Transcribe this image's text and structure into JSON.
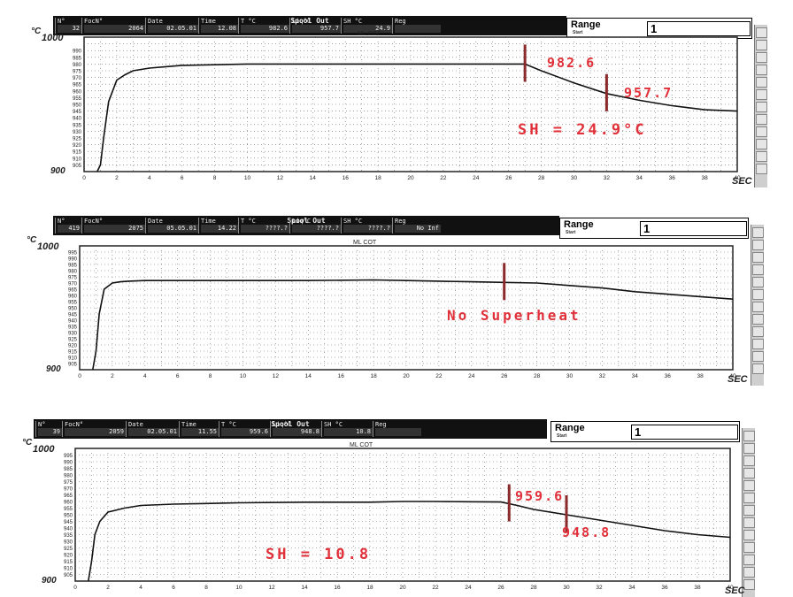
{
  "header_title": "Spool Out",
  "plot_label": "ML COT",
  "range_label": "Range",
  "range_sub": "Start",
  "colors": {
    "curve": "#111111",
    "annotation": "#e0303a",
    "marker": "#8a2a2a",
    "header": "#111111"
  },
  "panels": [
    {
      "header": {
        "cols": [
          {
            "label": "N°",
            "value": "32"
          },
          {
            "label": "FocN°",
            "value": "2064"
          },
          {
            "label": "Date",
            "value": "02.05.01"
          },
          {
            "label": "Time",
            "value": "12.08"
          },
          {
            "label": "T °C",
            "value": "982.6"
          },
          {
            "label": "Liq°C",
            "value": "957.7"
          },
          {
            "label": "SH °C",
            "value": "24.9"
          },
          {
            "label": "Reg",
            "value": ""
          }
        ],
        "range_value": "1"
      },
      "chart_data": {
        "type": "line",
        "x": [
          0.8,
          1.0,
          1.2,
          1.5,
          2,
          2.5,
          3,
          4,
          5,
          6,
          8,
          10,
          12,
          14,
          16,
          18,
          20,
          22,
          24,
          26,
          27,
          28,
          30,
          32,
          34,
          36,
          38,
          40
        ],
        "y": [
          900,
          905,
          925,
          952,
          968,
          972,
          975,
          977,
          978,
          979,
          979.5,
          980,
          980,
          980,
          980,
          980,
          980,
          980,
          980,
          980,
          980,
          975,
          966,
          958,
          953,
          949,
          946,
          945
        ],
        "xlim": [
          0,
          40
        ],
        "ylim": [
          900,
          1000
        ],
        "xticks": [
          "0",
          "2",
          "4",
          "6",
          "8",
          "10",
          "12",
          "14",
          "16",
          "18",
          "20",
          "22",
          "24",
          "26",
          "28",
          "30",
          "32",
          "34",
          "36",
          "38",
          "40"
        ],
        "yticks": [
          "905",
          "910",
          "915",
          "920",
          "925",
          "930",
          "935",
          "940",
          "945",
          "950",
          "955",
          "960",
          "965",
          "970",
          "975",
          "980",
          "985",
          "990"
        ],
        "yaxis_top": "1000",
        "yaxis_bottom": "900",
        "y_unit": "°C",
        "x_unit": "SEC",
        "markers": [
          {
            "x": 27,
            "label": "982.6"
          },
          {
            "x": 32,
            "label": "957.7"
          }
        ],
        "annotation": "SH = 24.9°C"
      }
    },
    {
      "header": {
        "cols": [
          {
            "label": "N°",
            "value": "419"
          },
          {
            "label": "FocN°",
            "value": "2075"
          },
          {
            "label": "Date",
            "value": "05.05.01"
          },
          {
            "label": "Time",
            "value": "14.22"
          },
          {
            "label": "T °C",
            "value": "????.?"
          },
          {
            "label": "Liq°C",
            "value": "????.?"
          },
          {
            "label": "SH °C",
            "value": "????.?"
          },
          {
            "label": "Reg",
            "value": "No Inf"
          }
        ],
        "range_value": "1"
      },
      "chart_data": {
        "type": "line",
        "x": [
          0.8,
          1.0,
          1.2,
          1.5,
          2,
          2.5,
          3,
          4,
          6,
          8,
          10,
          14,
          18,
          20,
          24,
          26,
          28,
          30,
          32,
          34,
          36,
          38,
          40
        ],
        "y": [
          900,
          915,
          945,
          965,
          970,
          971,
          971.5,
          972,
          972,
          972,
          972,
          972,
          972.5,
          972,
          971,
          970.5,
          970,
          968,
          966,
          963,
          961,
          959,
          957
        ],
        "xlim": [
          0,
          40
        ],
        "ylim": [
          900,
          1000
        ],
        "xticks": [
          "0",
          "2",
          "4",
          "6",
          "8",
          "10",
          "12",
          "14",
          "16",
          "18",
          "20",
          "22",
          "24",
          "26",
          "28",
          "30",
          "32",
          "34",
          "36",
          "38",
          "40"
        ],
        "yticks": [
          "905",
          "910",
          "915",
          "920",
          "925",
          "930",
          "935",
          "940",
          "945",
          "950",
          "955",
          "960",
          "965",
          "970",
          "975",
          "980",
          "985",
          "990",
          "995"
        ],
        "yaxis_top": "1000",
        "yaxis_bottom": "900",
        "y_unit": "°C",
        "x_unit": "SEC",
        "markers": [
          {
            "x": 26,
            "label": ""
          }
        ],
        "annotation": "No Superheat"
      }
    },
    {
      "header": {
        "cols": [
          {
            "label": "N°",
            "value": "39"
          },
          {
            "label": "FocN°",
            "value": "2059"
          },
          {
            "label": "Date",
            "value": "02.05.01"
          },
          {
            "label": "Time",
            "value": "11.55"
          },
          {
            "label": "T °C",
            "value": "959.6"
          },
          {
            "label": "Liq°C",
            "value": "948.8"
          },
          {
            "label": "SH °C",
            "value": "10.8"
          },
          {
            "label": "Reg",
            "value": ""
          }
        ],
        "range_value": "1"
      },
      "chart_data": {
        "type": "line",
        "x": [
          0.8,
          1.0,
          1.2,
          1.5,
          2,
          3,
          4,
          6,
          8,
          10,
          14,
          18,
          20,
          22,
          24,
          26,
          27,
          28,
          30,
          32,
          34,
          36,
          38,
          40
        ],
        "y": [
          900,
          915,
          935,
          945,
          952,
          955,
          957,
          958,
          958.5,
          959,
          959.5,
          959.5,
          960,
          960,
          959.8,
          959.6,
          957,
          954,
          950,
          946,
          942,
          938,
          935,
          933
        ],
        "xlim": [
          0,
          40
        ],
        "ylim": [
          900,
          1000
        ],
        "xticks": [
          "0",
          "2",
          "4",
          "6",
          "8",
          "10",
          "12",
          "14",
          "16",
          "18",
          "20",
          "22",
          "24",
          "26",
          "28",
          "30",
          "32",
          "34",
          "36",
          "38",
          "40"
        ],
        "yticks": [
          "905",
          "910",
          "915",
          "920",
          "925",
          "930",
          "935",
          "940",
          "945",
          "950",
          "955",
          "960",
          "965",
          "970",
          "975",
          "980",
          "985",
          "990",
          "995"
        ],
        "yaxis_top": "1000",
        "yaxis_bottom": "900",
        "y_unit": "°C",
        "x_unit": "SEC",
        "markers": [
          {
            "x": 26.5,
            "label": "959.6"
          },
          {
            "x": 30,
            "label": "948.8"
          }
        ],
        "annotation": "SH = 10.8"
      }
    }
  ]
}
